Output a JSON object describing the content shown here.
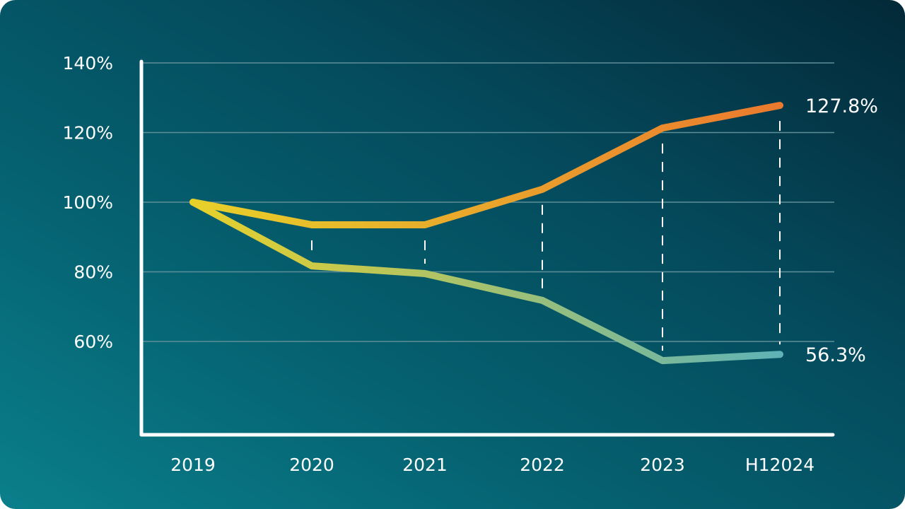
{
  "chart_data": {
    "type": "line",
    "title": "",
    "xlabel": "",
    "ylabel": "",
    "categories": [
      "2019",
      "2020",
      "2021",
      "2022",
      "2023",
      "H12024"
    ],
    "y_ticks": [
      "60%",
      "80%",
      "100%",
      "120%",
      "140%"
    ],
    "y_tick_values": [
      60,
      80,
      100,
      120,
      140
    ],
    "ylim": [
      33,
      140
    ],
    "grid": true,
    "series": [
      {
        "values": [
          100,
          93.5,
          93.5,
          103.7,
          121.3,
          127.8
        ],
        "end_label": "127.8%",
        "colors": [
          "#e8d02a",
          "#ea7a2e"
        ]
      },
      {
        "values": [
          100,
          81.7,
          79.5,
          71.8,
          54.5,
          56.3
        ],
        "end_label": "56.3%",
        "colors": [
          "#e8d02a",
          "#5fb3b6"
        ]
      }
    ],
    "colors": {
      "axis": "#ffffff",
      "grid": "#5e8e98",
      "bg_light": "#0a7f8b",
      "bg_dark": "#032938"
    }
  }
}
